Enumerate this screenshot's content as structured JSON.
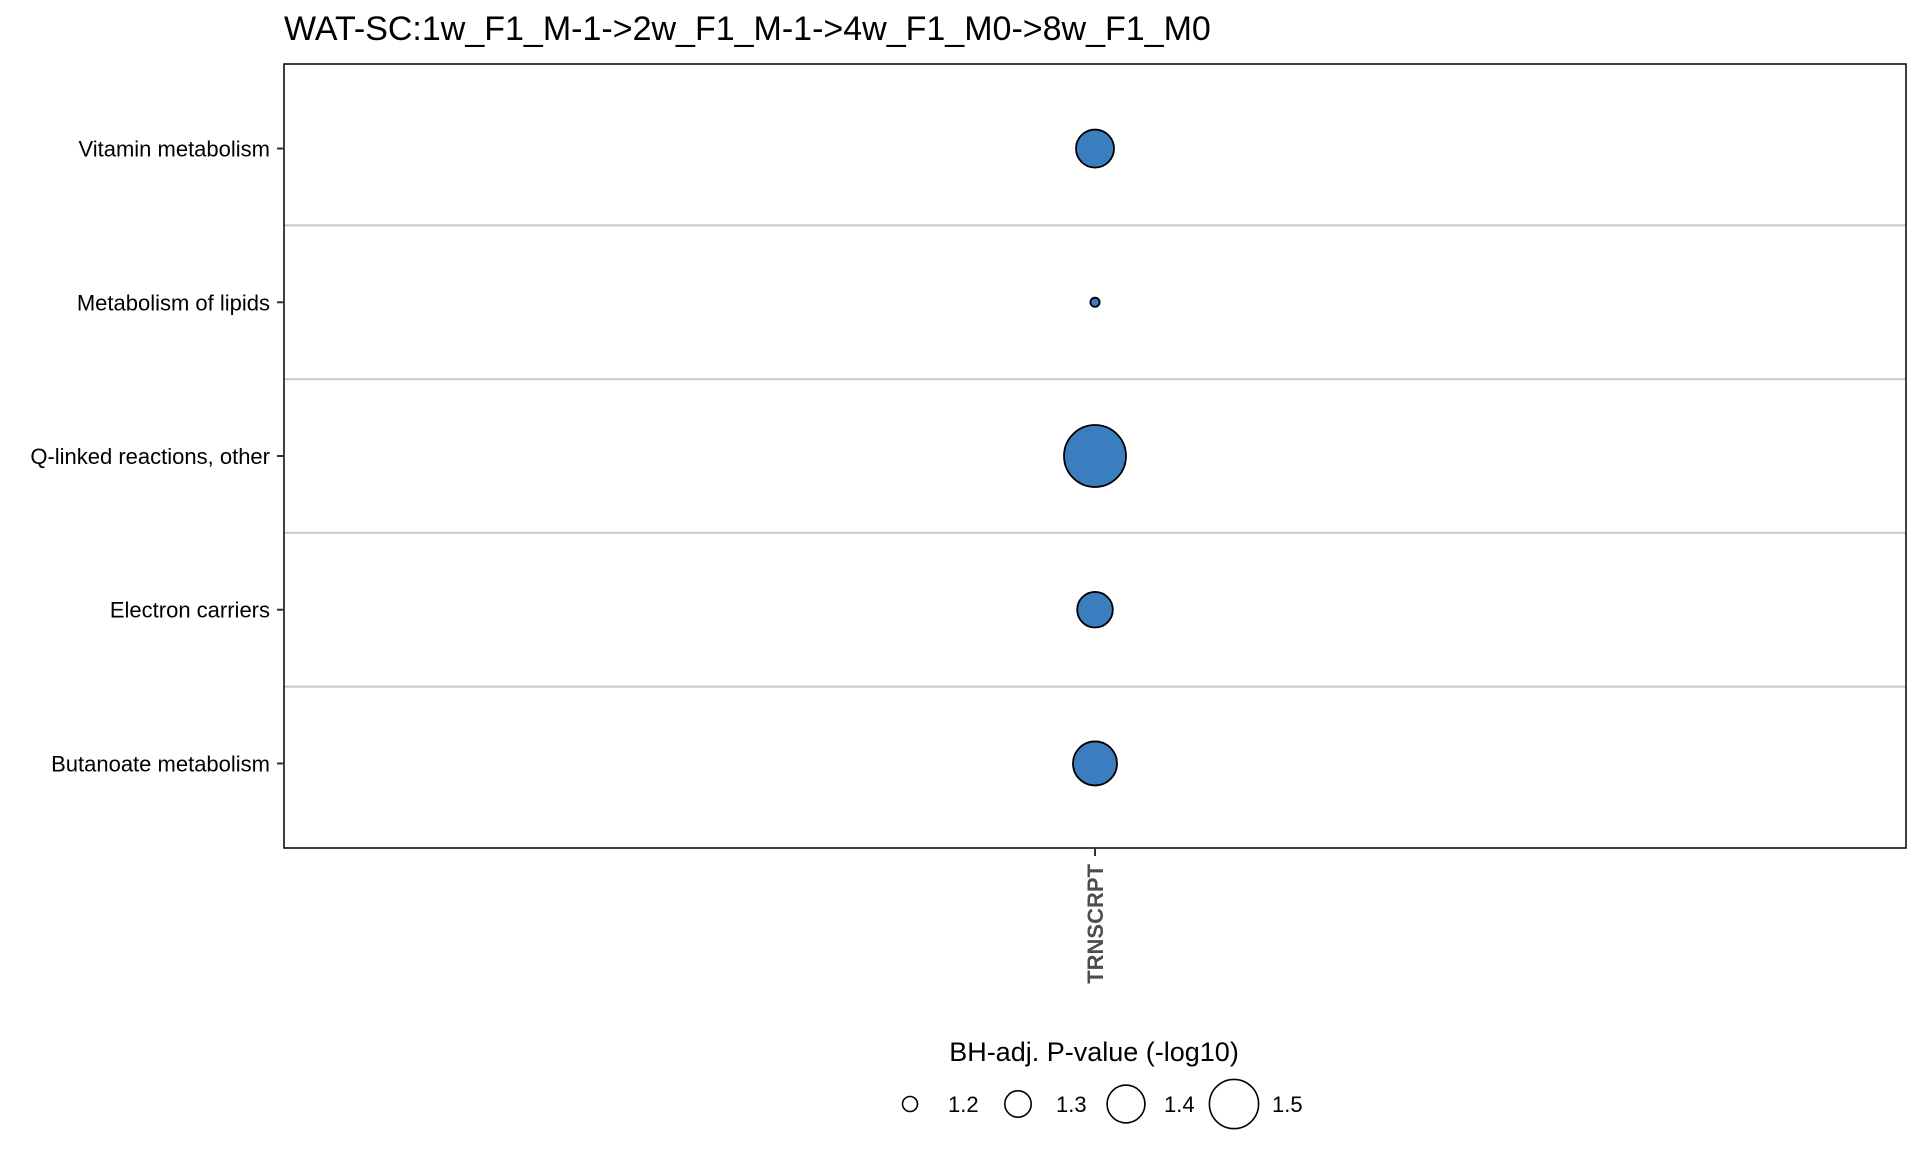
{
  "chart_data": {
    "type": "scatter",
    "title": "WAT-SC:1w_F1_M-1->2w_F1_M-1->4w_F1_M0->8w_F1_M0",
    "xlabel": "",
    "ylabel": "",
    "x_categories": [
      "TRNSCRPT"
    ],
    "y_categories": [
      "Vitamin metabolism",
      "Metabolism of lipids",
      "Q-linked reactions, other",
      "Electron carriers",
      "Butanoate metabolism"
    ],
    "points": [
      {
        "x": "TRNSCRPT",
        "y": "Vitamin metabolism",
        "size_value": 1.35
      },
      {
        "x": "TRNSCRPT",
        "y": "Metabolism of lipids",
        "size_value": 1.11
      },
      {
        "x": "TRNSCRPT",
        "y": "Q-linked reactions, other",
        "size_value": 1.55
      },
      {
        "x": "TRNSCRPT",
        "y": "Electron carriers",
        "size_value": 1.33
      },
      {
        "x": "TRNSCRPT",
        "y": "Butanoate metabolism",
        "size_value": 1.4
      }
    ],
    "point_color": "#3A7EBF",
    "size_legend": {
      "title": "BH-adj. P-value (-log10)",
      "values": [
        1.2,
        1.3,
        1.4,
        1.5
      ],
      "labels": [
        "1.2",
        "1.3",
        "1.4",
        "1.5"
      ]
    },
    "grid": "horizontal",
    "legend_position": "bottom"
  }
}
